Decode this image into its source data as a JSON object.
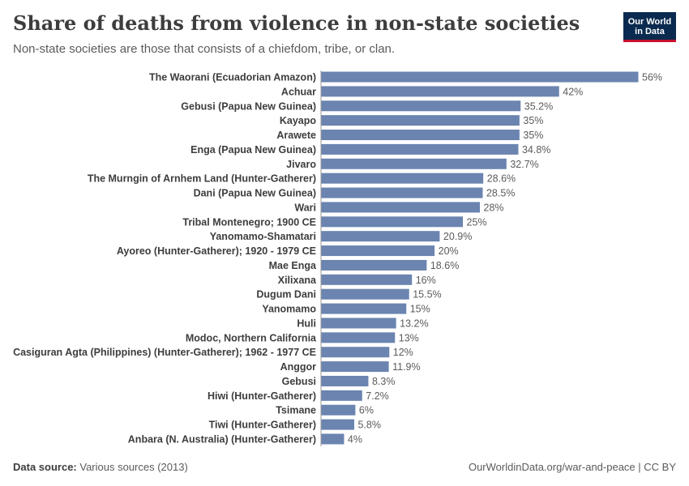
{
  "header": {
    "title": "Share of deaths from violence in non-state societies",
    "subtitle": "Non-state societies are those that consists of a chiefdom, tribe, or clan.",
    "logo_line1": "Our World",
    "logo_line2": "in Data"
  },
  "footer": {
    "source_label": "Data source:",
    "source_value": "Various sources (2013)",
    "credit": "OurWorldinData.org/war-and-peace | CC BY"
  },
  "colors": {
    "bar": "#6b84b0",
    "label": "#3d3d3d",
    "value": "#5b5b5b",
    "axis": "#999999"
  },
  "chart_data": {
    "type": "bar",
    "orientation": "horizontal",
    "categories": [
      "The Waorani (Ecuadorian Amazon)",
      "Achuar",
      "Gebusi (Papua New Guinea)",
      "Kayapo",
      "Arawete",
      "Enga (Papua New Guinea)",
      "Jivaro",
      "The Murngin of Arnhem Land (Hunter-Gatherer)",
      "Dani (Papua New Guinea)",
      "Wari",
      "Tribal Montenegro; 1900 CE",
      "Yanomamo-Shamatari",
      "Ayoreo (Hunter-Gatherer); 1920 - 1979 CE",
      "Mae Enga",
      "Xilixana",
      "Dugum Dani",
      "Yanomamo",
      "Huli",
      "Modoc, Northern California",
      "Casiguran Agta (Philippines) (Hunter-Gatherer); 1962 - 1977 CE",
      "Anggor",
      "Gebusi",
      "Hiwi (Hunter-Gatherer)",
      "Tsimane",
      "Tiwi (Hunter-Gatherer)",
      "Anbara (N. Australia) (Hunter-Gatherer)"
    ],
    "values": [
      56,
      42,
      35.2,
      35,
      35,
      34.8,
      32.7,
      28.6,
      28.5,
      28,
      25,
      20.9,
      20,
      18.6,
      16,
      15.5,
      15,
      13.2,
      13,
      12,
      11.9,
      8.3,
      7.2,
      6,
      5.8,
      4
    ],
    "value_labels": [
      "56%",
      "42%",
      "35.2%",
      "35%",
      "35%",
      "34.8%",
      "32.7%",
      "28.6%",
      "28.5%",
      "28%",
      "25%",
      "20.9%",
      "20%",
      "18.6%",
      "16%",
      "15.5%",
      "15%",
      "13.2%",
      "13%",
      "12%",
      "11.9%",
      "8.3%",
      "7.2%",
      "6%",
      "5.8%",
      "4%"
    ],
    "xlim": [
      0,
      56
    ],
    "unit": "%",
    "legend": "none",
    "grid": false
  }
}
